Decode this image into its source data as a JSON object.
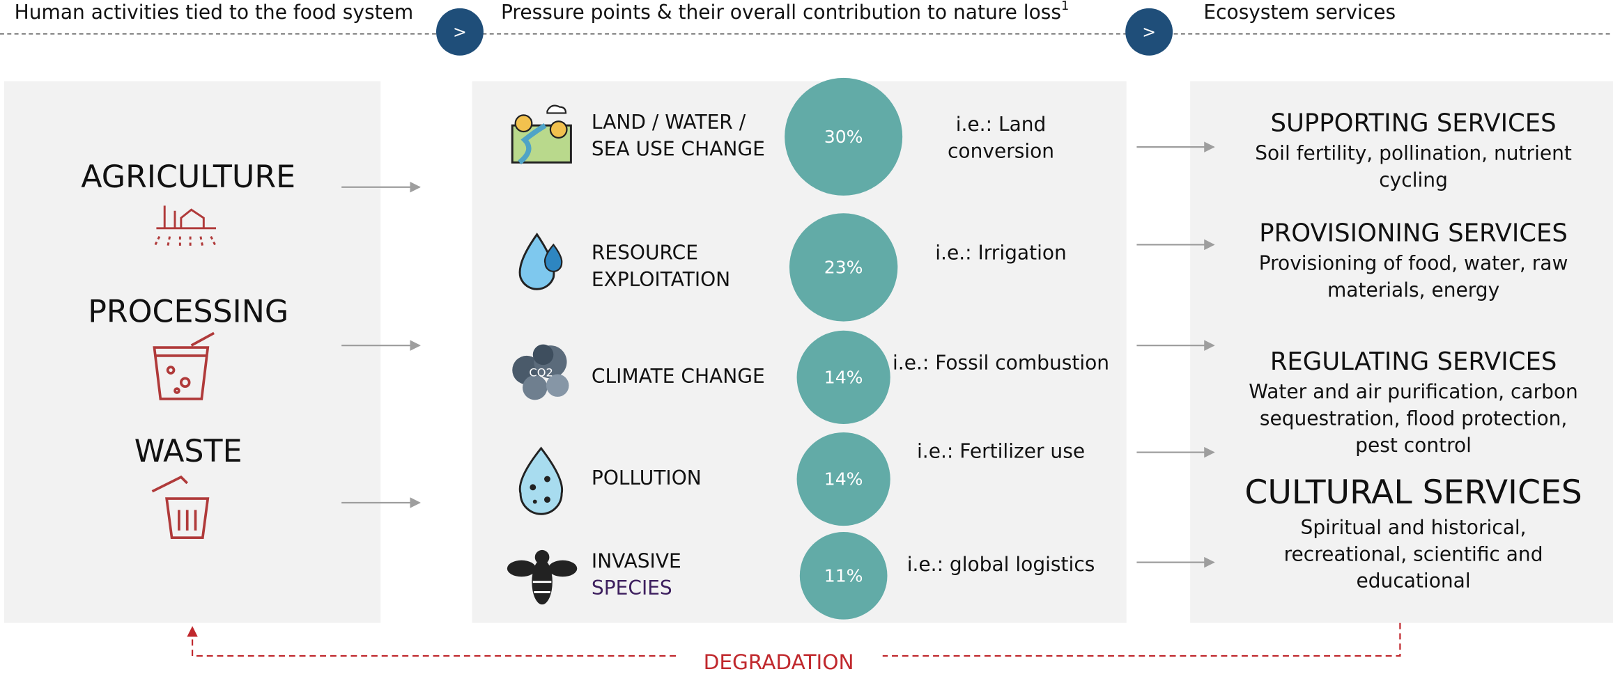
{
  "header": {
    "left_title": "Human activities tied to the food system",
    "middle_title": "Pressure points & their overall contribution to nature loss",
    "middle_title_note": "1",
    "right_title": "Ecosystem services",
    "step_markers": [
      ">",
      ">"
    ]
  },
  "activities": [
    {
      "label": "AGRICULTURE"
    },
    {
      "label": "PROCESSING"
    },
    {
      "label": "WASTE"
    }
  ],
  "pressures": [
    {
      "lines": [
        "LAND / WATER /",
        "SEA USE CHANGE"
      ],
      "contribution": {
        "value": 30,
        "label": "30%"
      },
      "example": [
        "i.e.: Land",
        "conversion"
      ]
    },
    {
      "lines": [
        "RESOURCE",
        "EXPLOITATION"
      ],
      "contribution": {
        "value": 23,
        "label": "23%"
      },
      "example": [
        "i.e.: Irrigation"
      ]
    },
    {
      "lines": [
        "CLIMATE CHANGE"
      ],
      "contribution": {
        "value": 14,
        "label": "14%"
      },
      "example": [
        "i.e.: Fossil combustion"
      ]
    },
    {
      "lines": [
        "POLLUTION"
      ],
      "contribution": {
        "value": 14,
        "label": "14%"
      },
      "example": [
        "i.e.: Fertilizer use"
      ]
    },
    {
      "lines": [
        "INVASIVE",
        "SPECIES"
      ],
      "contribution": {
        "value": 11,
        "label": "11%"
      },
      "example": [
        "i.e.: global logistics"
      ]
    }
  ],
  "services": [
    {
      "title": "SUPPORTING SERVICES",
      "description": [
        "Soil fertility, pollination, nutrient",
        "cycling"
      ]
    },
    {
      "title": "PROVISIONING SERVICES",
      "description": [
        "Provisioning of food, water, raw",
        "materials, energy"
      ]
    },
    {
      "title": "REGULATING SERVICES",
      "description": [
        "Water and air purification, carbon",
        "sequestration, flood protection,",
        "pest control"
      ]
    },
    {
      "title": "CULTURAL SERVICES",
      "description": [
        "Spiritual and historical,",
        "recreational, scientific and",
        "educational"
      ]
    }
  ],
  "feedback": {
    "label": "DEGRADATION"
  }
}
